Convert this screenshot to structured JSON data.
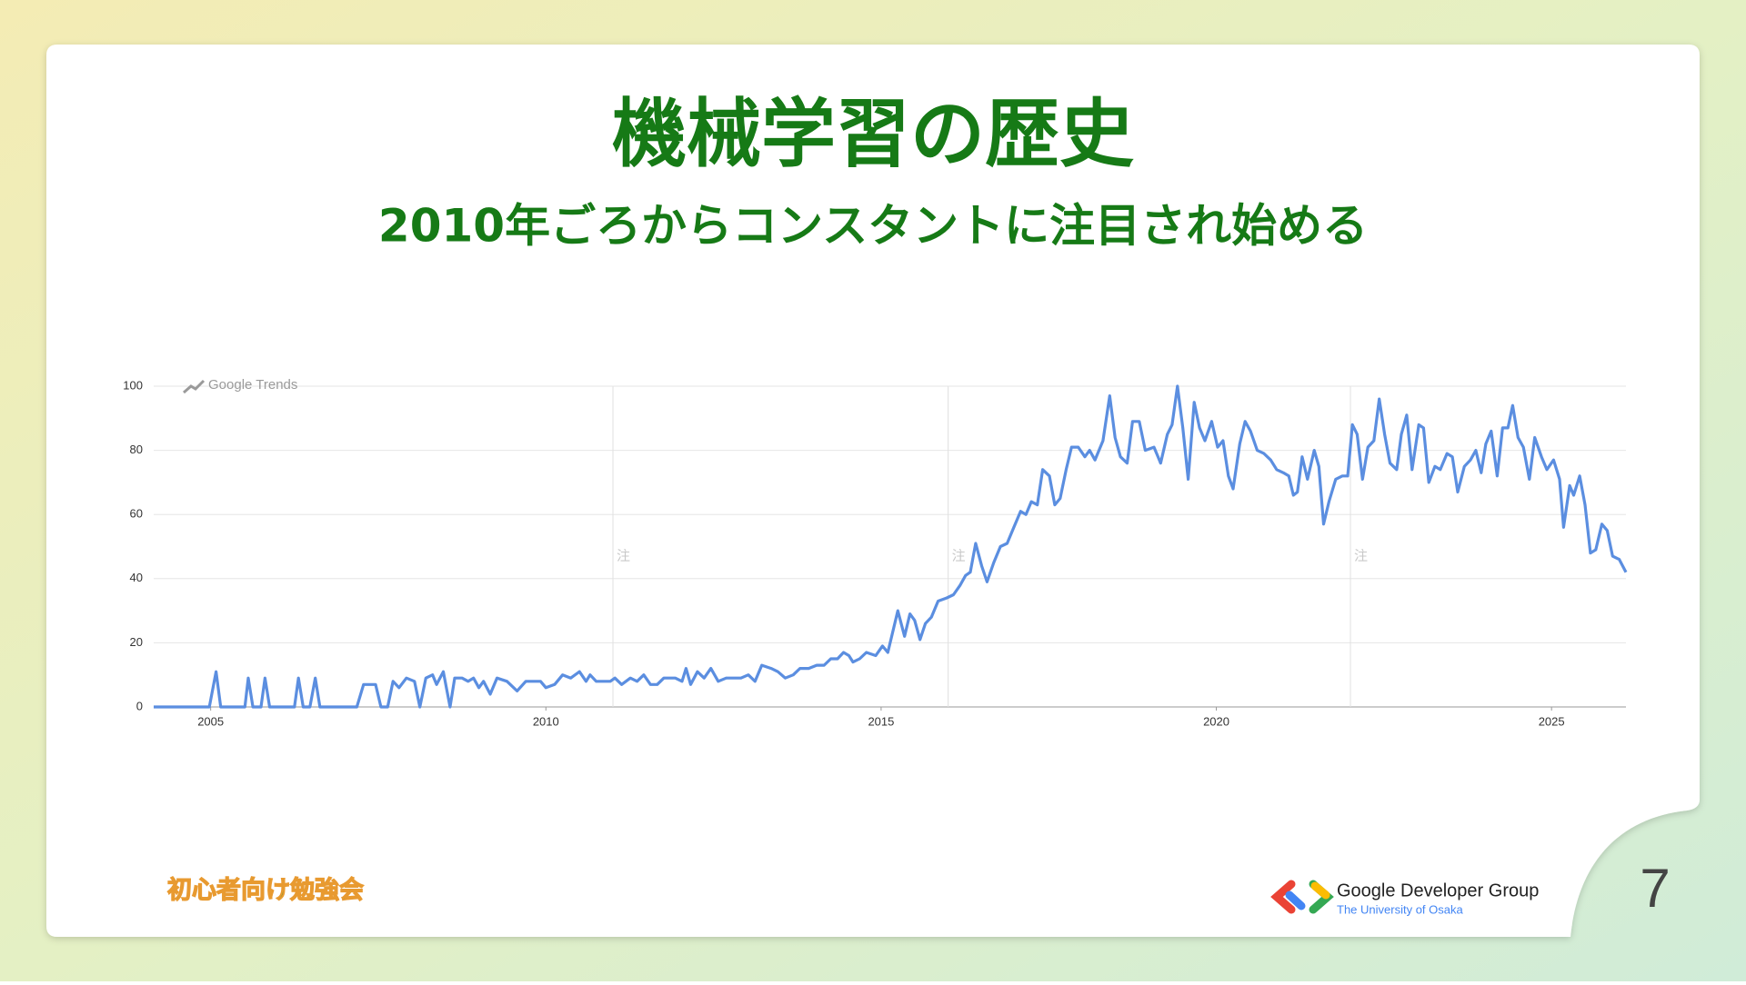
{
  "slide": {
    "title": "機械学習の歴史",
    "subtitle": "2010年ごろからコンスタントに注目され始める",
    "page_number": "7",
    "event_logo": "初心者向け勉強会",
    "org_name": "Google Developer Group",
    "org_sub": "The University of Osaka"
  },
  "chart_data": {
    "type": "line",
    "source": "Google Trends",
    "color": "#5b8ee0",
    "grid": true,
    "xlim": [
      2004.15,
      2026.11
    ],
    "xticks": [
      2005,
      2010,
      2015,
      2020,
      2025
    ],
    "ylim": [
      0,
      100
    ],
    "yticks": [
      0,
      20,
      40,
      60,
      80,
      100
    ],
    "annotations": [
      {
        "x": 2011.0,
        "label": "注"
      },
      {
        "x": 2016.0,
        "label": "注"
      },
      {
        "x": 2022.0,
        "label": "注"
      }
    ],
    "x": [
      2004.15,
      2004.98,
      2005.08,
      2005.15,
      2005.51,
      2005.56,
      2005.63,
      2005.75,
      2005.81,
      2005.88,
      2006.25,
      2006.31,
      2006.38,
      2006.48,
      2006.56,
      2006.63,
      2007.18,
      2007.28,
      2007.46,
      2007.54,
      2007.64,
      2007.72,
      2007.81,
      2007.92,
      2008.04,
      2008.12,
      2008.21,
      2008.31,
      2008.37,
      2008.47,
      2008.57,
      2008.64,
      2008.75,
      2008.84,
      2008.92,
      2009.0,
      2009.07,
      2009.17,
      2009.27,
      2009.42,
      2009.57,
      2009.7,
      2009.92,
      2010.0,
      2010.13,
      2010.25,
      2010.37,
      2010.5,
      2010.6,
      2010.66,
      2010.75,
      2010.96,
      2011.03,
      2011.13,
      2011.26,
      2011.36,
      2011.46,
      2011.56,
      2011.66,
      2011.76,
      2011.93,
      2012.03,
      2012.09,
      2012.16,
      2012.26,
      2012.36,
      2012.46,
      2012.57,
      2012.69,
      2012.91,
      2013.02,
      2013.12,
      2013.22,
      2013.36,
      2013.46,
      2013.57,
      2013.69,
      2013.79,
      2013.92,
      2014.04,
      2014.15,
      2014.25,
      2014.35,
      2014.44,
      2014.52,
      2014.58,
      2014.68,
      2014.78,
      2014.92,
      2015.02,
      2015.1,
      2015.17,
      2015.25,
      2015.35,
      2015.43,
      2015.5,
      2015.58,
      2015.66,
      2015.75,
      2015.85,
      2015.98,
      2016.08,
      2016.18,
      2016.26,
      2016.33,
      2016.41,
      2016.5,
      2016.58,
      2016.68,
      2016.78,
      2016.88,
      2016.98,
      2017.08,
      2017.16,
      2017.24,
      2017.33,
      2017.41,
      2017.51,
      2017.59,
      2017.67,
      2017.76,
      2017.84,
      2017.94,
      2018.04,
      2018.11,
      2018.19,
      2018.31,
      2018.41,
      2018.49,
      2018.57,
      2018.67,
      2018.75,
      2018.85,
      2018.94,
      2019.07,
      2019.17,
      2019.27,
      2019.34,
      2019.42,
      2019.5,
      2019.58,
      2019.67,
      2019.75,
      2019.83,
      2019.93,
      2020.02,
      2020.1,
      2020.18,
      2020.25,
      2020.35,
      2020.43,
      2020.51,
      2020.61,
      2020.71,
      2020.81,
      2020.9,
      2021.0,
      2021.08,
      2021.15,
      2021.21,
      2021.28,
      2021.36,
      2021.46,
      2021.53,
      2021.6,
      2021.68,
      2021.78,
      2021.88,
      2021.96,
      2022.03,
      2022.1,
      2022.18,
      2022.26,
      2022.35,
      2022.43,
      2022.51,
      2022.59,
      2022.69,
      2022.76,
      2022.84,
      2022.92,
      2023.02,
      2023.09,
      2023.17,
      2023.26,
      2023.34,
      2023.44,
      2023.52,
      2023.6,
      2023.7,
      2023.79,
      2023.87,
      2023.95,
      2024.02,
      2024.1,
      2024.19,
      2024.27,
      2024.35,
      2024.42,
      2024.5,
      2024.58,
      2024.67,
      2024.75,
      2024.85,
      2024.93,
      2025.03,
      2025.12,
      2025.18,
      2025.27,
      2025.33,
      2025.42,
      2025.5,
      2025.58,
      2025.66,
      2025.75,
      2025.83,
      2025.91,
      2026.01,
      2026.11
    ],
    "values": [
      0,
      0,
      11,
      0,
      0,
      9,
      0,
      0,
      9,
      0,
      0,
      9,
      0,
      0,
      9,
      0,
      0,
      7,
      7,
      0,
      0,
      8,
      6,
      9,
      8,
      0,
      9,
      10,
      7,
      11,
      0,
      9,
      9,
      8,
      9,
      6,
      8,
      4,
      9,
      8,
      5,
      8,
      8,
      6,
      7,
      10,
      9,
      11,
      8,
      10,
      8,
      8,
      9,
      7,
      9,
      8,
      10,
      7,
      7,
      9,
      9,
      8,
      12,
      7,
      11,
      9,
      12,
      8,
      9,
      9,
      10,
      8,
      13,
      12,
      11,
      9,
      10,
      12,
      12,
      13,
      13,
      15,
      15,
      17,
      16,
      14,
      15,
      17,
      16,
      19,
      17,
      23,
      30,
      22,
      29,
      27,
      21,
      26,
      28,
      33,
      34,
      35,
      38,
      41,
      42,
      51,
      44,
      39,
      45,
      50,
      51,
      56,
      61,
      60,
      64,
      63,
      74,
      72,
      63,
      65,
      74,
      81,
      81,
      78,
      80,
      77,
      83,
      97,
      84,
      78,
      76,
      89,
      89,
      80,
      81,
      76,
      85,
      88,
      100,
      87,
      71,
      95,
      87,
      83,
      89,
      81,
      83,
      72,
      68,
      82,
      89,
      86,
      80,
      79,
      77,
      74,
      73,
      72,
      66,
      67,
      78,
      71,
      80,
      75,
      57,
      64,
      71,
      72,
      72,
      88,
      85,
      71,
      81,
      83,
      96,
      85,
      76,
      74,
      85,
      91,
      74,
      88,
      87,
      70,
      75,
      74,
      79,
      78,
      67,
      75,
      77,
      80,
      73,
      82,
      86,
      72,
      87,
      87,
      94,
      84,
      81,
      71,
      84,
      78,
      74,
      77,
      71,
      56,
      69,
      66,
      72,
      63,
      48,
      49,
      57,
      55,
      47,
      46,
      42
    ]
  }
}
